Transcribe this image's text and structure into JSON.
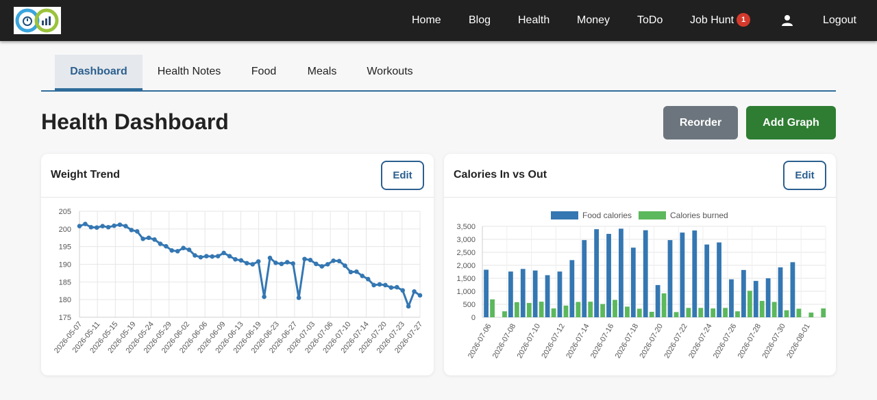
{
  "nav": {
    "items": [
      {
        "label": "Home"
      },
      {
        "label": "Blog"
      },
      {
        "label": "Health"
      },
      {
        "label": "Money"
      },
      {
        "label": "ToDo"
      },
      {
        "label": "Job Hunt",
        "badge": "1"
      },
      {
        "label": "Logout"
      }
    ],
    "user_icon": "user-icon"
  },
  "tabs": [
    {
      "label": "Dashboard",
      "active": true
    },
    {
      "label": "Health Notes"
    },
    {
      "label": "Food"
    },
    {
      "label": "Meals"
    },
    {
      "label": "Workouts"
    }
  ],
  "header": {
    "title": "Health Dashboard",
    "reorder_label": "Reorder",
    "add_label": "Add Graph"
  },
  "colors": {
    "navbar": "#202020",
    "accent": "#2b5f8f",
    "badge": "#d33a2c",
    "reorder": "#6c757d",
    "add": "#2e7d32",
    "series_blue": "#3477b2",
    "series_green": "#5cb85c"
  },
  "cards": [
    {
      "title": "Weight Trend",
      "edit_label": "Edit"
    },
    {
      "title": "Calories In vs Out",
      "edit_label": "Edit"
    }
  ],
  "chart_data": [
    {
      "type": "line",
      "title": "Weight Trend",
      "ylim": [
        175,
        205
      ],
      "yticks": [
        175,
        180,
        185,
        190,
        195,
        200,
        205
      ],
      "grid": true,
      "x_tick_labels": [
        "2026-05-07",
        "2026-05-11",
        "2026-05-15",
        "2026-05-19",
        "2026-05-24",
        "2026-05-29",
        "2026-06-02",
        "2026-06-06",
        "2026-06-09",
        "2026-06-13",
        "2026-06-19",
        "2026-06-23",
        "2026-06-27",
        "2026-07-03",
        "2026-07-06",
        "2026-07-10",
        "2026-07-14",
        "2026-07-20",
        "2026-07-23",
        "2026-07-27"
      ],
      "values": [
        200.8,
        201.4,
        200.5,
        200.4,
        200.8,
        200.5,
        200.9,
        201.2,
        200.8,
        199.7,
        199.3,
        197.2,
        197.5,
        197.0,
        195.8,
        195.1,
        193.9,
        193.7,
        194.6,
        194.1,
        192.5,
        192.0,
        192.3,
        192.2,
        192.3,
        193.2,
        192.3,
        191.4,
        191.1,
        190.3,
        190.0,
        190.8,
        180.8,
        191.8,
        190.4,
        190.1,
        190.6,
        190.2,
        180.5,
        191.5,
        191.2,
        190.1,
        189.4,
        190.0,
        191.0,
        190.9,
        189.6,
        187.8,
        187.9,
        186.7,
        185.8,
        184.1,
        184.3,
        184.1,
        183.4,
        183.5,
        182.6,
        178.1,
        182.3,
        181.2
      ]
    },
    {
      "type": "bar",
      "title": "Calories In vs Out",
      "ylim": [
        0,
        3500
      ],
      "yticks": [
        "0",
        "500",
        "1,000",
        "1,500",
        "2,000",
        "2,500",
        "3,000",
        "3,500"
      ],
      "legend": "top",
      "grid": true,
      "categories": [
        "2026-07-06",
        "2026-07-07",
        "2026-07-08",
        "2026-07-09",
        "2026-07-10",
        "2026-07-11",
        "2026-07-12",
        "2026-07-13",
        "2026-07-14",
        "2026-07-15",
        "2026-07-16",
        "2026-07-17",
        "2026-07-18",
        "2026-07-19",
        "2026-07-20",
        "2026-07-21",
        "2026-07-22",
        "2026-07-23",
        "2026-07-24",
        "2026-07-25",
        "2026-07-26",
        "2026-07-27",
        "2026-07-28",
        "2026-07-29",
        "2026-07-30",
        "2026-07-31",
        "2026-08-01",
        "2026-08-02"
      ],
      "x_tick_labels": [
        "2026-07-06",
        "2026-07-08",
        "2026-07-10",
        "2026-07-12",
        "2026-07-14",
        "2026-07-16",
        "2026-07-18",
        "2026-07-20",
        "2026-07-22",
        "2026-07-24",
        "2026-07-26",
        "2026-07-28",
        "2026-07-30",
        "2026-08-01"
      ],
      "series": [
        {
          "name": "Food calories",
          "color": "#3477b2",
          "values": [
            1830,
            0,
            1760,
            1860,
            1800,
            1620,
            1760,
            2200,
            2970,
            3390,
            3210,
            3410,
            2680,
            3350,
            1240,
            2970,
            3260,
            3340,
            2800,
            2880,
            1460,
            1820,
            1400,
            1500,
            1920,
            2120,
            0,
            0
          ]
        },
        {
          "name": "Calories burned",
          "color": "#5cb85c",
          "values": [
            690,
            230,
            580,
            550,
            600,
            340,
            450,
            590,
            600,
            510,
            670,
            410,
            330,
            210,
            920,
            200,
            360,
            360,
            340,
            360,
            230,
            1020,
            630,
            590,
            270,
            330,
            180,
            340
          ]
        }
      ]
    }
  ]
}
